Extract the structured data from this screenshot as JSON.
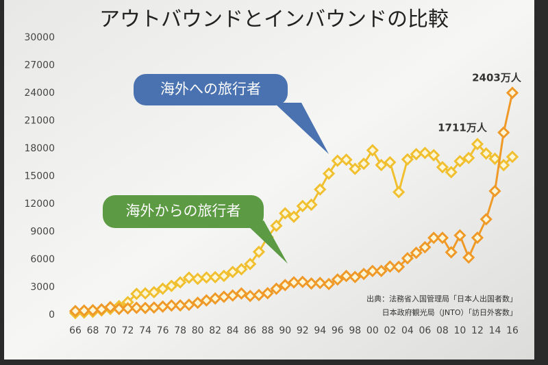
{
  "chart_data": {
    "type": "line",
    "title": "アウトバウンドとインバウンドの比較",
    "categories": [
      "66",
      null,
      "68",
      null,
      "70",
      null,
      "72",
      null,
      "74",
      null,
      "76",
      null,
      "78",
      null,
      "80",
      null,
      "82",
      null,
      "84",
      null,
      "86",
      null,
      "88",
      null,
      "90",
      null,
      "92",
      null,
      "94",
      null,
      "96",
      null,
      "98",
      null,
      "00",
      null,
      "02",
      null,
      "04",
      null,
      "06",
      null,
      "08",
      null,
      "10",
      null,
      "12",
      null,
      "14",
      null,
      "16"
    ],
    "series": [
      {
        "name": "海外への旅行者",
        "color": "#f0c030",
        "bubble_color": "#4a72b0",
        "values": [
          210,
          270,
          340,
          490,
          660,
          960,
          1390,
          2290,
          2340,
          2470,
          2850,
          3150,
          3530,
          4040,
          3910,
          4060,
          4090,
          4230,
          4660,
          4950,
          5520,
          6830,
          8430,
          9660,
          11000,
          10630,
          11790,
          11930,
          13580,
          15300,
          16690,
          16800,
          15810,
          16360,
          17820,
          16220,
          16520,
          13300,
          16830,
          17400,
          17530,
          17290,
          15990,
          15450,
          16640,
          16990,
          18490,
          17470,
          16900,
          16210,
          17110
        ]
      },
      {
        "name": "海外からの旅行者",
        "color": "#ef9a28",
        "bubble_color": "#5c9a44",
        "values": [
          430,
          480,
          520,
          610,
          850,
          660,
          720,
          780,
          760,
          810,
          910,
          1030,
          1040,
          1110,
          1320,
          1580,
          1790,
          1970,
          2110,
          2330,
          2060,
          2160,
          2360,
          2840,
          3240,
          3530,
          3580,
          3410,
          3470,
          3350,
          3840,
          4220,
          4110,
          4440,
          4760,
          4770,
          5240,
          5210,
          6140,
          6730,
          7330,
          8350,
          8350,
          6790,
          8610,
          6220,
          8360,
          10360,
          13410,
          19740,
          24030
        ]
      }
    ],
    "annotations": [
      {
        "text": "2403万人",
        "series": 1,
        "index": 50
      },
      {
        "text": "1711万人",
        "series": 0,
        "index": 50
      }
    ],
    "source": [
      "出典：法務省入国管理局「日本人出国者数」",
      "日本政府観光局（JNTO）「訪日外客数」"
    ],
    "ylim": [
      0,
      30000
    ],
    "yticks": [
      0,
      3000,
      6000,
      9000,
      12000,
      15000,
      18000,
      21000,
      24000,
      27000,
      30000
    ]
  }
}
